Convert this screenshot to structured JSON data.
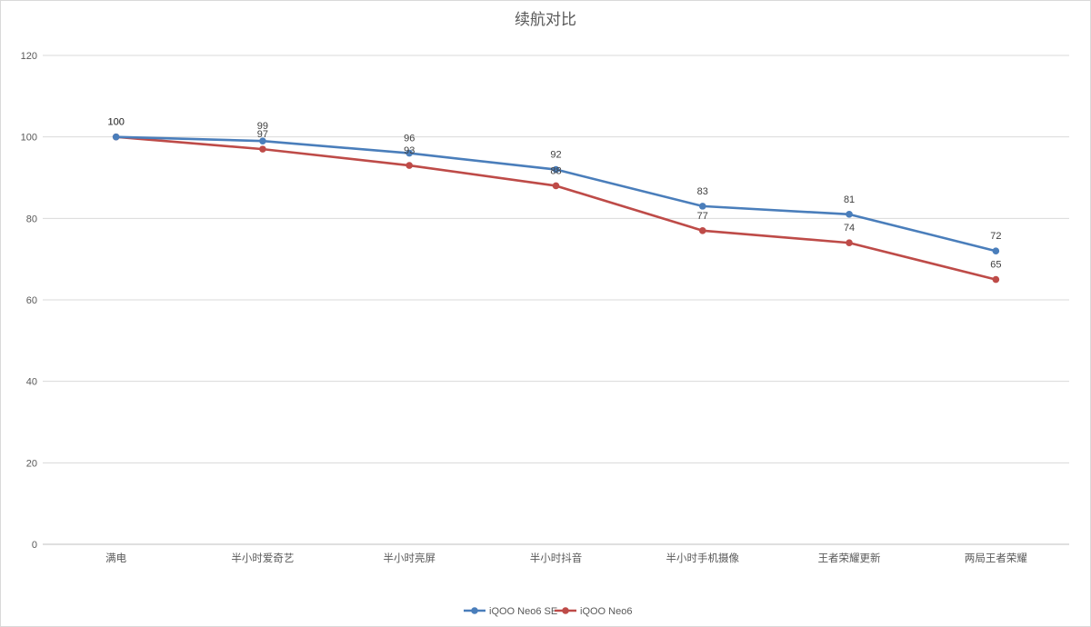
{
  "chart_data": {
    "type": "line",
    "title": "续航对比",
    "xlabel": "",
    "ylabel": "",
    "categories": [
      "满电",
      "半小时爱奇艺",
      "半小时亮屏",
      "半小时抖音",
      "半小时手机摄像",
      "王者荣耀更新",
      "两局王者荣耀"
    ],
    "ylim": [
      0,
      120
    ],
    "yticks": [
      0,
      20,
      40,
      60,
      80,
      100,
      120
    ],
    "grid": true,
    "legend_position": "bottom",
    "series": [
      {
        "name": "iQOO Neo6 SE",
        "color": "#4a7ebb",
        "values": [
          100,
          99,
          96,
          92,
          83,
          81,
          72
        ]
      },
      {
        "name": "iQOO Neo6",
        "color": "#be4b48",
        "values": [
          100,
          97,
          93,
          88,
          77,
          74,
          65
        ]
      }
    ]
  }
}
